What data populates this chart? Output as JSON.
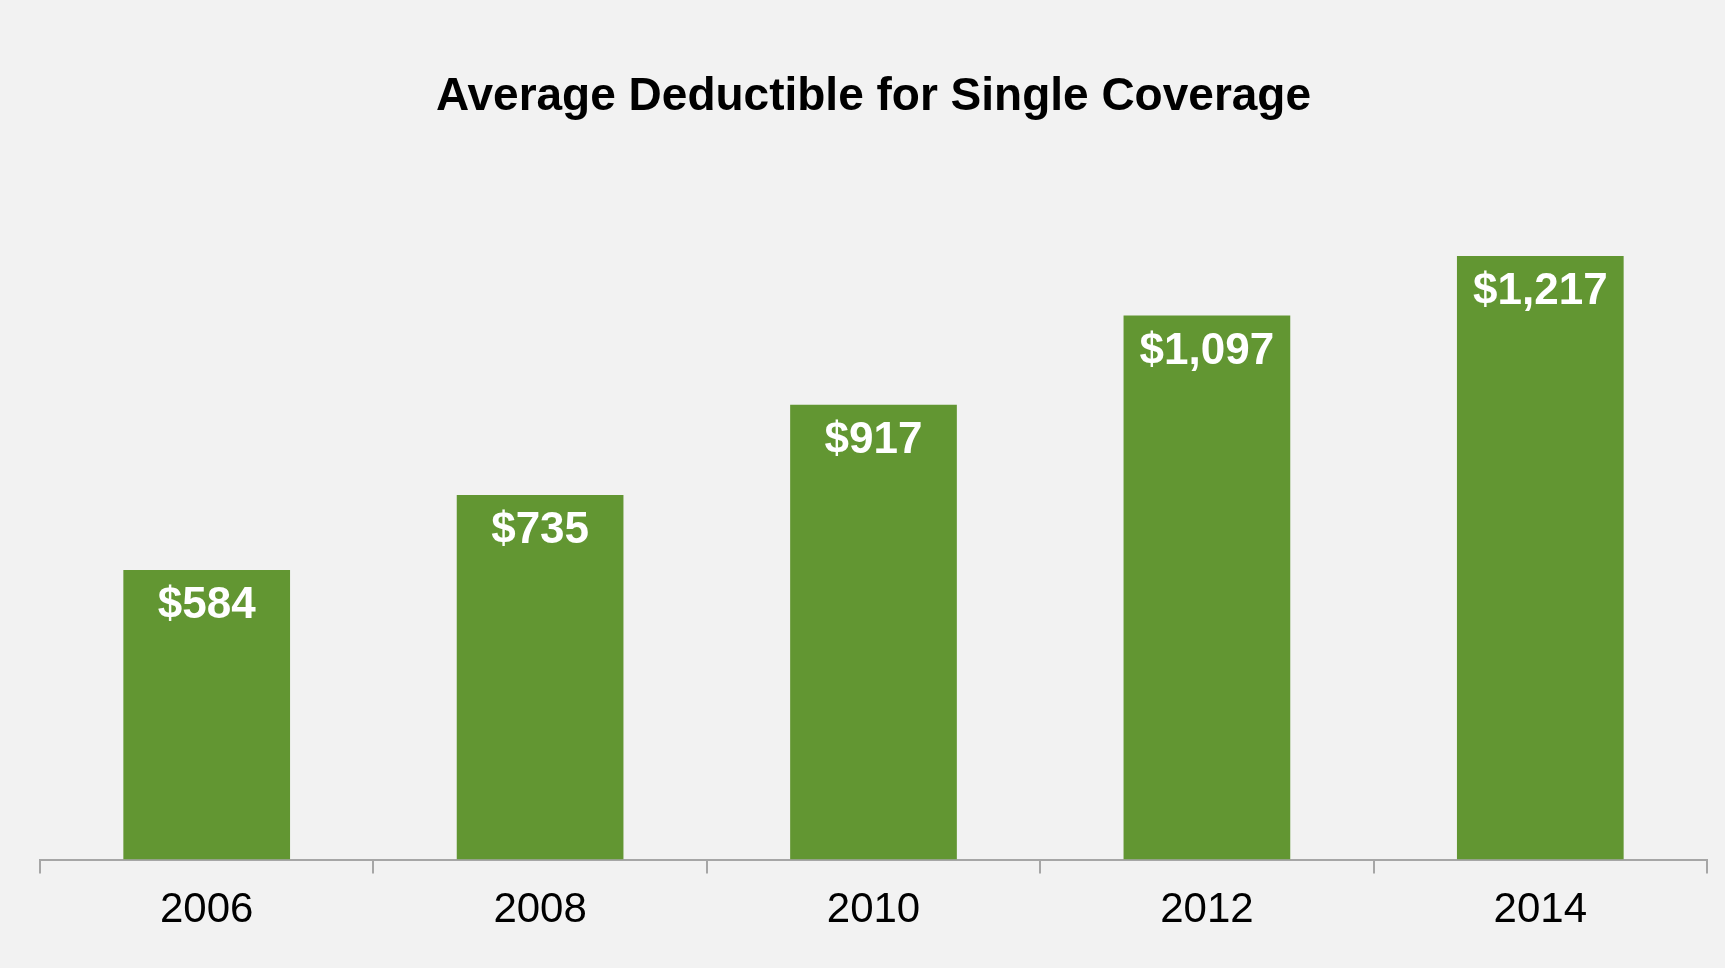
{
  "chart_data": {
    "type": "bar",
    "title": "Average Deductible for Single Coverage",
    "categories": [
      "2006",
      "2008",
      "2010",
      "2012",
      "2014"
    ],
    "values": [
      584,
      735,
      917,
      1097,
      1217
    ],
    "value_labels": [
      "$584",
      "$735",
      "$917",
      "$1,097",
      "$1,217"
    ],
    "color": "#629632"
  }
}
